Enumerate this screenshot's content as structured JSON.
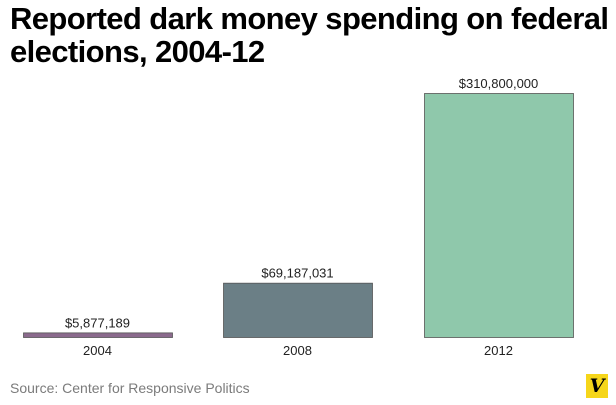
{
  "title": "Reported dark money spending on federal elections, 2004-12",
  "source": "Source: Center for Responsive Politics",
  "logo_text": "V",
  "colors": {
    "bar_2004": "#8b6a8d",
    "bar_2008": "#6b7f86",
    "bar_2012": "#8fc8ab",
    "bar_stroke": "#555555",
    "logo": "#f6d61a"
  },
  "chart_data": {
    "type": "bar",
    "title": "Reported dark money spending on federal elections, 2004-12",
    "xlabel": "",
    "ylabel": "",
    "categories": [
      "2004",
      "2008",
      "2012"
    ],
    "values": [
      5877189,
      69187031,
      310800000
    ],
    "value_labels": [
      "$5,877,189",
      "$69,187,031",
      "$310,800,000"
    ],
    "ylim": [
      0,
      310800000
    ],
    "grid": false,
    "legend": "none"
  }
}
